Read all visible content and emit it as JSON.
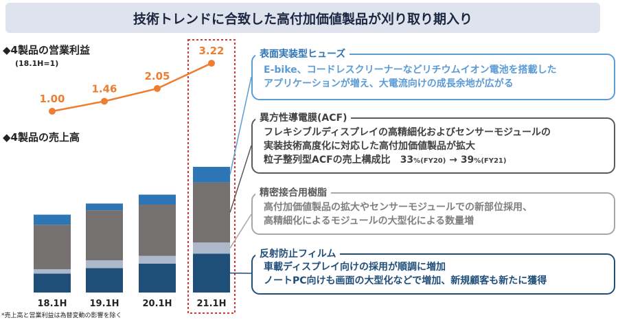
{
  "title": "技術トレンドに合致した高付加価値製品が刈り取り期入り",
  "profit_label": "◆4製品の営業利益",
  "profit_sublabel": "(18.1H=1)",
  "sales_label": "◆4製品の売上高",
  "footnote": "*売上高と営業利益は為替変動の影響を除く",
  "colors": {
    "segment_top": "#2e75b6",
    "segment_mid": "#767171",
    "segment_light": "#adb9ca",
    "segment_bottom": "#1f4e79",
    "line": "#ed7d31",
    "highlight": "#e03030"
  },
  "chart_data": {
    "type": "bar",
    "stacked": true,
    "categories": [
      "18.1H",
      "19.1H",
      "20.1H",
      "21.1H"
    ],
    "series": [
      {
        "name": "反射防止フィルム",
        "values": [
          1.7,
          2.2,
          2.6,
          3.5
        ]
      },
      {
        "name": "精密接合用樹脂",
        "values": [
          0.4,
          0.7,
          0.7,
          1.0
        ]
      },
      {
        "name": "異方性導電膜(ACF)",
        "values": [
          4.0,
          4.5,
          4.6,
          5.4
        ]
      },
      {
        "name": "表面実装型ヒューズ",
        "values": [
          0.9,
          0.6,
          0.9,
          1.4
        ]
      }
    ],
    "profit_index": {
      "categories": [
        "18.1H",
        "19.1H",
        "20.1H",
        "21.1H"
      ],
      "values": [
        1.0,
        1.46,
        2.05,
        3.22
      ],
      "labels": [
        "1.00",
        "1.46",
        "2.05",
        "3.22"
      ]
    }
  },
  "boxes": [
    {
      "title": "表面実装型ヒューズ",
      "lines": [
        "E-bike、コードレスクリーナーなどリチウムイオン電池を搭載した",
        "アプリケーションが増え、大電流向けの成長余地が広がる"
      ],
      "border": "#5b9bd5",
      "title_color": "#2e75b6",
      "text_color": "#5b9bd5"
    },
    {
      "title": "異方性導電膜(ACF)",
      "lines": [
        "フレキシブルディスプレイの高精細化およびセンサーモジュールの",
        "実装技術高度化に対応した高付加価値製品が拡大"
      ],
      "last_line": {
        "prefix": "粒子整列型ACFの売上構成比　",
        "v1": "33",
        "u1": "%(FY20)",
        "arrow": " → ",
        "v2": "39",
        "u2": "%(FY21)"
      },
      "border": "#595959",
      "title_color": "#404040",
      "text_color": "#404040"
    },
    {
      "title": "精密接合用樹脂",
      "lines": [
        "高付加価値製品の拡大やセンサーモジュールでの新部位採用、",
        "高精細化によるモジュールの大型化による数量増"
      ],
      "border": "#a6a6a6",
      "title_color": "#595959",
      "text_color": "#7f7f7f"
    },
    {
      "title": "反射防止フィルム",
      "lines": [
        "車載ディスプレイ向けの採用が順調に増加",
        "ノートPC向けも画面の大型化などで増加、新規顧客も新たに獲得"
      ],
      "border": "#1f4e79",
      "title_color": "#1f4e79",
      "text_color": "#1f4e79"
    }
  ]
}
